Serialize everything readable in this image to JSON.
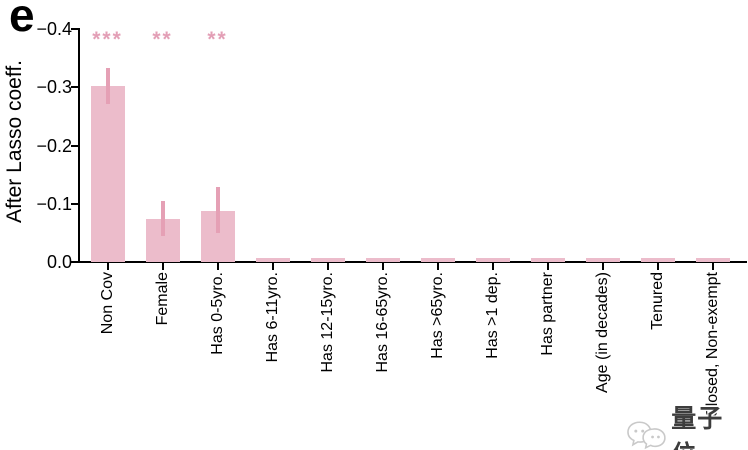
{
  "chart_data": {
    "type": "bar",
    "panel_label": "e",
    "ylabel": "After Lasso coeff.",
    "categories": [
      "Non Cov",
      "Female",
      "Has 0-5yro.",
      "Has 6-11yro.",
      "Has 12-15yro.",
      "Has 16-65yro.",
      "Has >65yro.",
      "Has >1 dep.",
      "Has partner",
      "Age (in decades)",
      "Tenured",
      "Closed, Non-exempt"
    ],
    "values": [
      -0.303,
      -0.073,
      -0.088,
      -0.007,
      -0.007,
      -0.007,
      -0.007,
      -0.007,
      -0.007,
      -0.007,
      -0.007,
      -0.007
    ],
    "errors": [
      {
        "low": -0.272,
        "high": -0.333
      },
      {
        "low": -0.045,
        "high": -0.104
      },
      {
        "low": -0.05,
        "high": -0.129
      },
      null,
      null,
      null,
      null,
      null,
      null,
      null,
      null,
      null
    ],
    "significance": [
      "***",
      "**",
      "**",
      "",
      "",
      "",
      "",
      "",
      "",
      "",
      "",
      ""
    ],
    "yticks": [
      -0.4,
      -0.3,
      -0.2,
      -0.1,
      0.0
    ],
    "ytick_labels": [
      "−0.4",
      "−0.3",
      "−0.2",
      "−0.1",
      "0.0"
    ],
    "ylim": [
      0.0,
      -0.4
    ],
    "axis_inverted": true,
    "grid": false,
    "legend": null,
    "colors": {
      "bar_fill": "#ecbccb",
      "error_bar": "#e5a0b5",
      "stars": "#e39fb6",
      "axis": "#000000"
    }
  },
  "watermark": {
    "text": "量子位",
    "logo": "qbitai-logo"
  }
}
